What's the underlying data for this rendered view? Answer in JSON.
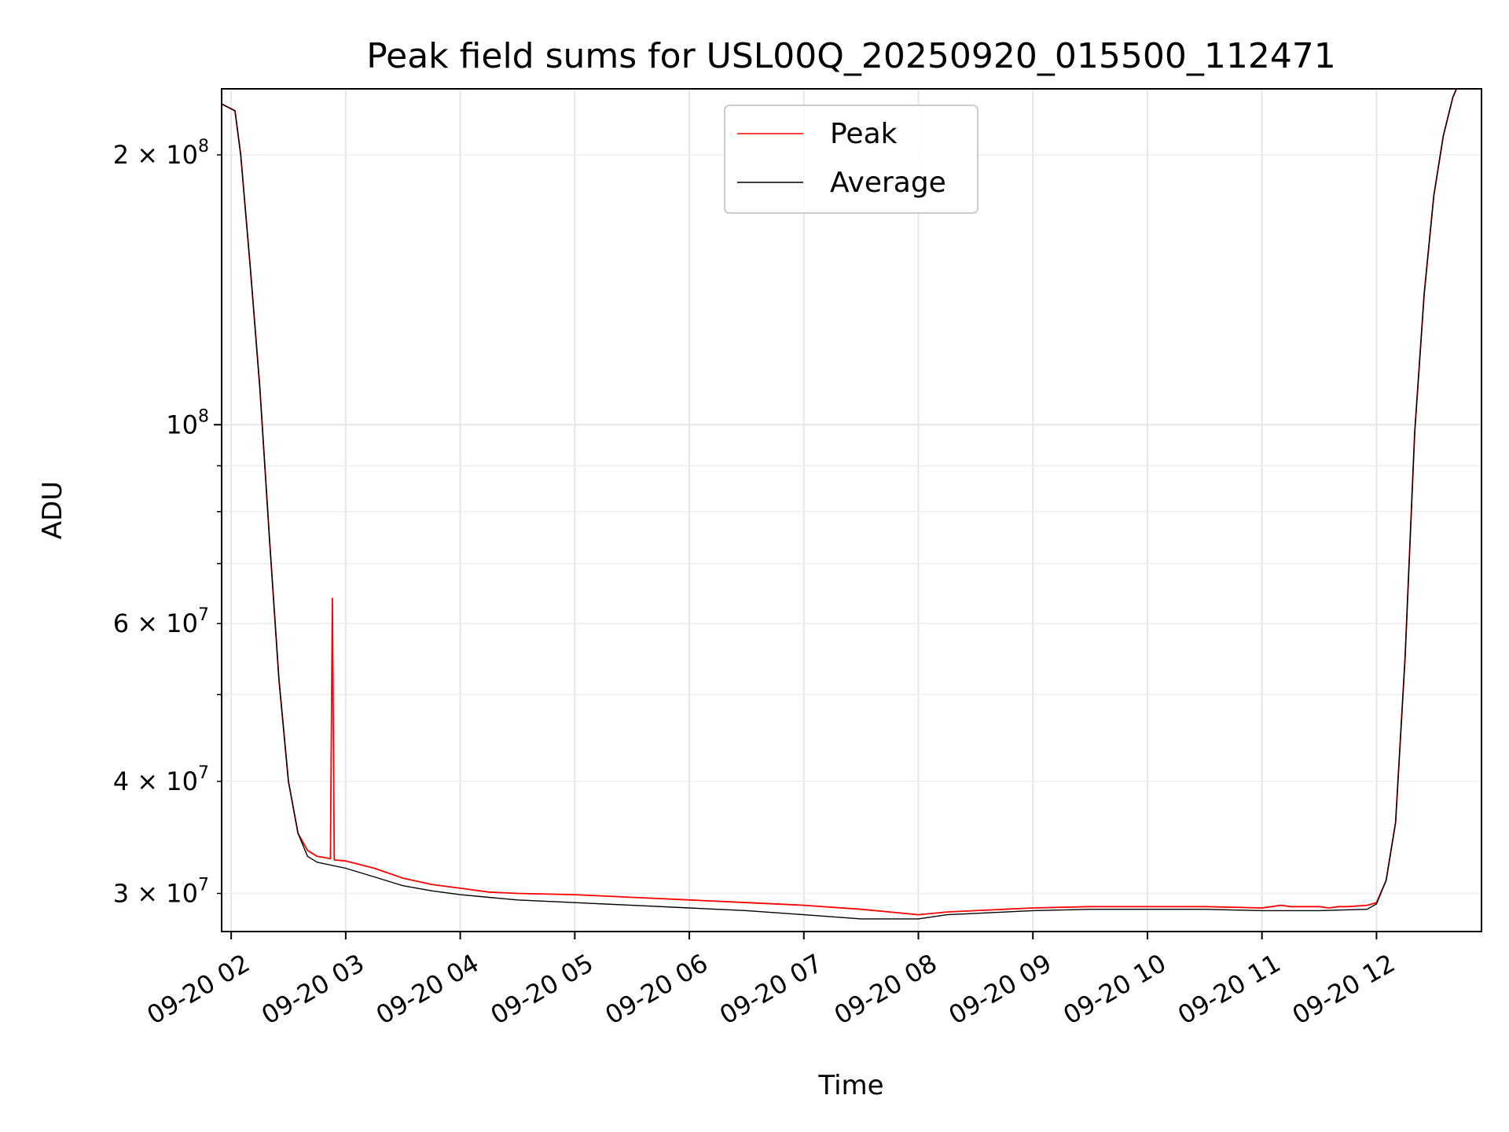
{
  "chart_data": {
    "type": "line",
    "title": "Peak field sums for USL00Q_20250920_015500_112471",
    "xlabel": "Time",
    "ylabel": "ADU",
    "yscale": "log",
    "ylim": [
      27200000,
      237000000
    ],
    "xlim": [
      "2025-09-20 01:55",
      "2025-09-20 12:55"
    ],
    "grid": true,
    "legend": "top-center",
    "x_ticks": [
      {
        "value": "2025-09-20 02:00",
        "label": "09-20 02"
      },
      {
        "value": "2025-09-20 03:00",
        "label": "09-20 03"
      },
      {
        "value": "2025-09-20 04:00",
        "label": "09-20 04"
      },
      {
        "value": "2025-09-20 05:00",
        "label": "09-20 05"
      },
      {
        "value": "2025-09-20 06:00",
        "label": "09-20 06"
      },
      {
        "value": "2025-09-20 07:00",
        "label": "09-20 07"
      },
      {
        "value": "2025-09-20 08:00",
        "label": "09-20 08"
      },
      {
        "value": "2025-09-20 09:00",
        "label": "09-20 09"
      },
      {
        "value": "2025-09-20 10:00",
        "label": "09-20 10"
      },
      {
        "value": "2025-09-20 11:00",
        "label": "09-20 11"
      },
      {
        "value": "2025-09-20 12:00",
        "label": "09-20 12"
      }
    ],
    "y_major_ticks": [
      {
        "value": 100000000,
        "mant": "",
        "exp": "8"
      }
    ],
    "y_minor_ticks": [
      {
        "value": 30000000,
        "mant": "3",
        "exp": "7",
        "labeled": true
      },
      {
        "value": 40000000,
        "mant": "4",
        "exp": "7",
        "labeled": true
      },
      {
        "value": 50000000,
        "mant": "",
        "exp": "",
        "labeled": false
      },
      {
        "value": 60000000,
        "mant": "6",
        "exp": "7",
        "labeled": true
      },
      {
        "value": 70000000,
        "mant": "",
        "exp": "",
        "labeled": false
      },
      {
        "value": 80000000,
        "mant": "",
        "exp": "",
        "labeled": false
      },
      {
        "value": 90000000,
        "mant": "",
        "exp": "",
        "labeled": false
      },
      {
        "value": 200000000,
        "mant": "2",
        "exp": "8",
        "labeled": true
      }
    ],
    "series": [
      {
        "name": "Peak",
        "color": "#ff0000",
        "x": [
          "2025-09-20 01:55",
          "2025-09-20 02:02",
          "2025-09-20 02:05",
          "2025-09-20 02:10",
          "2025-09-20 02:15",
          "2025-09-20 02:20",
          "2025-09-20 02:25",
          "2025-09-20 02:30",
          "2025-09-20 02:35",
          "2025-09-20 02:40",
          "2025-09-20 02:45",
          "2025-09-20 02:52",
          "2025-09-20 02:53",
          "2025-09-20 02:54",
          "2025-09-20 03:00",
          "2025-09-20 03:15",
          "2025-09-20 03:30",
          "2025-09-20 03:45",
          "2025-09-20 04:00",
          "2025-09-20 04:15",
          "2025-09-20 04:30",
          "2025-09-20 05:00",
          "2025-09-20 05:30",
          "2025-09-20 06:00",
          "2025-09-20 06:30",
          "2025-09-20 07:00",
          "2025-09-20 07:30",
          "2025-09-20 08:00",
          "2025-09-20 08:15",
          "2025-09-20 08:30",
          "2025-09-20 09:00",
          "2025-09-20 09:30",
          "2025-09-20 10:00",
          "2025-09-20 10:30",
          "2025-09-20 11:00",
          "2025-09-20 11:05",
          "2025-09-20 11:10",
          "2025-09-20 11:15",
          "2025-09-20 11:20",
          "2025-09-20 11:25",
          "2025-09-20 11:30",
          "2025-09-20 11:35",
          "2025-09-20 11:40",
          "2025-09-20 11:45",
          "2025-09-20 11:55",
          "2025-09-20 12:00",
          "2025-09-20 12:05",
          "2025-09-20 12:10",
          "2025-09-20 12:15",
          "2025-09-20 12:20",
          "2025-09-20 12:25",
          "2025-09-20 12:30",
          "2025-09-20 12:35",
          "2025-09-20 12:40",
          "2025-09-20 12:43"
        ],
        "values": [
          228000000,
          224000000,
          200000000,
          150000000,
          110000000,
          75000000,
          52000000,
          40000000,
          35000000,
          33500000,
          33000000,
          32800000,
          64000000,
          32700000,
          32600000,
          32000000,
          31200000,
          30700000,
          30400000,
          30100000,
          30000000,
          29900000,
          29700000,
          29500000,
          29300000,
          29100000,
          28800000,
          28400000,
          28600000,
          28700000,
          28900000,
          29000000,
          29000000,
          29000000,
          28900000,
          29000000,
          29100000,
          29000000,
          29000000,
          29000000,
          29000000,
          28900000,
          29000000,
          29000000,
          29100000,
          29300000,
          31000000,
          36000000,
          55000000,
          98000000,
          140000000,
          180000000,
          210000000,
          232000000,
          240000000
        ]
      },
      {
        "name": "Average",
        "color": "#000000",
        "x": [
          "2025-09-20 01:55",
          "2025-09-20 02:02",
          "2025-09-20 02:05",
          "2025-09-20 02:10",
          "2025-09-20 02:15",
          "2025-09-20 02:20",
          "2025-09-20 02:25",
          "2025-09-20 02:30",
          "2025-09-20 02:35",
          "2025-09-20 02:40",
          "2025-09-20 02:45",
          "2025-09-20 03:00",
          "2025-09-20 03:15",
          "2025-09-20 03:30",
          "2025-09-20 03:45",
          "2025-09-20 04:00",
          "2025-09-20 04:15",
          "2025-09-20 04:30",
          "2025-09-20 05:00",
          "2025-09-20 05:30",
          "2025-09-20 06:00",
          "2025-09-20 06:30",
          "2025-09-20 07:00",
          "2025-09-20 07:30",
          "2025-09-20 08:00",
          "2025-09-20 08:15",
          "2025-09-20 08:30",
          "2025-09-20 09:00",
          "2025-09-20 09:30",
          "2025-09-20 10:00",
          "2025-09-20 10:30",
          "2025-09-20 11:00",
          "2025-09-20 11:30",
          "2025-09-20 11:55",
          "2025-09-20 12:00",
          "2025-09-20 12:05",
          "2025-09-20 12:10",
          "2025-09-20 12:15",
          "2025-09-20 12:20",
          "2025-09-20 12:25",
          "2025-09-20 12:30",
          "2025-09-20 12:35",
          "2025-09-20 12:40",
          "2025-09-20 12:43"
        ],
        "values": [
          228000000,
          224000000,
          200000000,
          150000000,
          110000000,
          75000000,
          52000000,
          40000000,
          35000000,
          33000000,
          32500000,
          32000000,
          31300000,
          30600000,
          30200000,
          29900000,
          29700000,
          29500000,
          29300000,
          29100000,
          28900000,
          28700000,
          28400000,
          28100000,
          28100000,
          28400000,
          28500000,
          28700000,
          28800000,
          28800000,
          28800000,
          28700000,
          28700000,
          28800000,
          29200000,
          31000000,
          36000000,
          55000000,
          98000000,
          140000000,
          180000000,
          210000000,
          232000000,
          240000000
        ]
      }
    ]
  }
}
